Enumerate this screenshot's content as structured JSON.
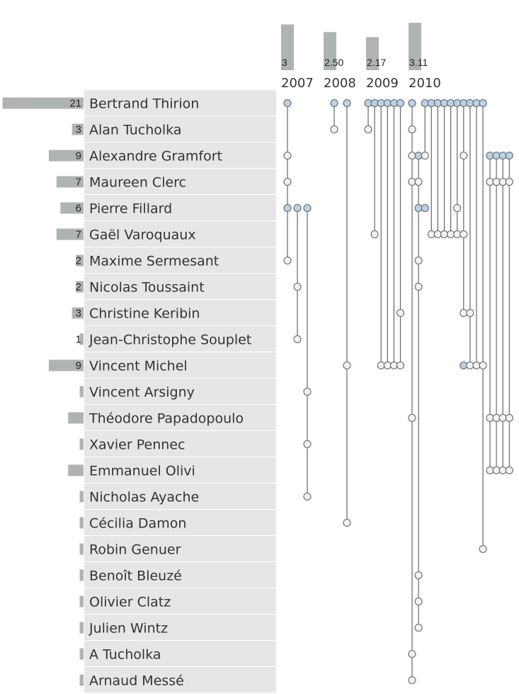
{
  "chart_data": {
    "type": "dot-matrix",
    "colors": {
      "bar": "#b0b3b4",
      "row_bg": "#e6e6e6",
      "dot_blue": "#b9d2ea",
      "dot_white": "#f2f2f2",
      "stroke": "#666666"
    },
    "years": [
      {
        "label": "2007",
        "avg_label": "3",
        "avg": 3
      },
      {
        "label": "2008",
        "avg_label": "2.50",
        "avg": 2.5
      },
      {
        "label": "2009",
        "avg_label": "2.17",
        "avg": 2.17
      },
      {
        "label": "2010",
        "avg_label": "3.11",
        "avg": 3.11
      }
    ],
    "authors": [
      {
        "name": "Bertrand Thirion",
        "count": 21,
        "count_label": "21"
      },
      {
        "name": "Alan Tucholka",
        "count": 3,
        "count_label": "3"
      },
      {
        "name": "Alexandre Gramfort",
        "count": 9,
        "count_label": "9"
      },
      {
        "name": "Maureen Clerc",
        "count": 7,
        "count_label": "7"
      },
      {
        "name": "Pierre Fillard",
        "count": 6,
        "count_label": "6"
      },
      {
        "name": "Gaël Varoquaux",
        "count": 7,
        "count_label": "7"
      },
      {
        "name": "Maxime Sermesant",
        "count": 2,
        "count_label": "2"
      },
      {
        "name": "Nicolas Toussaint",
        "count": 2,
        "count_label": "2"
      },
      {
        "name": "Christine Keribin",
        "count": 3,
        "count_label": "3"
      },
      {
        "name": "Jean-Christophe Souplet",
        "count": 1,
        "count_label": "1"
      },
      {
        "name": "Vincent Michel",
        "count": 9,
        "count_label": "9"
      },
      {
        "name": "Vincent Arsigny",
        "count": 1,
        "count_label": ""
      },
      {
        "name": "Théodore Papadopoulo",
        "count": 4,
        "count_label": ""
      },
      {
        "name": "Xavier Pennec",
        "count": 1,
        "count_label": ""
      },
      {
        "name": "Emmanuel Olivi",
        "count": 4,
        "count_label": ""
      },
      {
        "name": "Nicholas Ayache",
        "count": 1,
        "count_label": ""
      },
      {
        "name": "Cécilia Damon",
        "count": 1,
        "count_label": ""
      },
      {
        "name": "Robin Genuer",
        "count": 1,
        "count_label": ""
      },
      {
        "name": "Benoît Bleuzé",
        "count": 1,
        "count_label": ""
      },
      {
        "name": "Olivier Clatz",
        "count": 1,
        "count_label": ""
      },
      {
        "name": "Julien Wintz",
        "count": 1,
        "count_label": ""
      },
      {
        "name": "A Tucholka",
        "count": 1,
        "count_label": ""
      },
      {
        "name": "Arnaud Messé",
        "count": 1,
        "count_label": ""
      }
    ],
    "papers": [
      {
        "year": "2007",
        "slot": 0,
        "first": 0,
        "coauthors": [
          2,
          3,
          6
        ]
      },
      {
        "year": "2007",
        "slot": 0,
        "first": 4,
        "coauthors": []
      },
      {
        "year": "2007",
        "slot": 1,
        "first": 4,
        "coauthors": [
          7,
          9
        ]
      },
      {
        "year": "2007",
        "slot": 2,
        "first": 4,
        "coauthors": [
          11,
          13,
          15
        ]
      },
      {
        "year": "2008",
        "slot": 0,
        "first": 0,
        "coauthors": [
          1
        ]
      },
      {
        "year": "2008",
        "slot": 1,
        "first": 0,
        "coauthors": [
          10,
          16
        ]
      },
      {
        "year": "2009",
        "slot": 0,
        "first": 0,
        "coauthors": [
          1
        ]
      },
      {
        "year": "2009",
        "slot": 1,
        "first": 0,
        "coauthors": [
          5
        ]
      },
      {
        "year": "2009",
        "slot": 2,
        "first": 0,
        "coauthors": [
          10
        ]
      },
      {
        "year": "2009",
        "slot": 3,
        "first": 0,
        "coauthors": [
          10
        ]
      },
      {
        "year": "2009",
        "slot": 4,
        "first": 0,
        "coauthors": [
          10
        ]
      },
      {
        "year": "2009",
        "slot": 5,
        "first": 0,
        "coauthors": [
          8,
          10
        ]
      },
      {
        "year": "2010",
        "slot": 0,
        "first": 0,
        "coauthors": [
          1,
          2,
          3,
          12,
          21,
          22
        ]
      },
      {
        "year": "2010",
        "slot": 1,
        "first": 2,
        "coauthors": [
          3,
          6,
          7,
          18,
          19,
          20
        ]
      },
      {
        "year": "2010",
        "slot": 1,
        "first": 4,
        "coauthors": []
      },
      {
        "year": "2010",
        "slot": 2,
        "first": 4,
        "coauthors": []
      },
      {
        "year": "2010",
        "slot": 2,
        "first": 0,
        "coauthors": [
          2
        ]
      },
      {
        "year": "2010",
        "slot": 3,
        "first": 0,
        "coauthors": [
          5
        ]
      },
      {
        "year": "2010",
        "slot": 4,
        "first": 0,
        "coauthors": [
          5
        ]
      },
      {
        "year": "2010",
        "slot": 5,
        "first": 0,
        "coauthors": [
          5
        ]
      },
      {
        "year": "2010",
        "slot": 6,
        "first": 0,
        "coauthors": [
          5
        ]
      },
      {
        "year": "2010",
        "slot": 7,
        "first": 0,
        "coauthors": [
          4,
          5
        ]
      },
      {
        "year": "2010",
        "slot": 8,
        "first": 0,
        "coauthors": [
          2,
          5,
          8
        ]
      },
      {
        "year": "2010",
        "slot": 8,
        "first": 10,
        "coauthors": []
      },
      {
        "year": "2010",
        "slot": 9,
        "first": 0,
        "coauthors": [
          8,
          10
        ]
      },
      {
        "year": "2010",
        "slot": 10,
        "first": 0,
        "coauthors": [
          10
        ]
      },
      {
        "year": "2010",
        "slot": 11,
        "first": 0,
        "coauthors": [
          10,
          17
        ]
      },
      {
        "year": "2010",
        "slot": 12,
        "first": 2,
        "coauthors": [
          3,
          12,
          14
        ]
      },
      {
        "year": "2010",
        "slot": 13,
        "first": 2,
        "coauthors": [
          3,
          12,
          14
        ]
      },
      {
        "year": "2010",
        "slot": 14,
        "first": 2,
        "coauthors": [
          3,
          12,
          14
        ]
      },
      {
        "year": "2010",
        "slot": 15,
        "first": 2,
        "coauthors": [
          3,
          12,
          14
        ]
      }
    ]
  }
}
